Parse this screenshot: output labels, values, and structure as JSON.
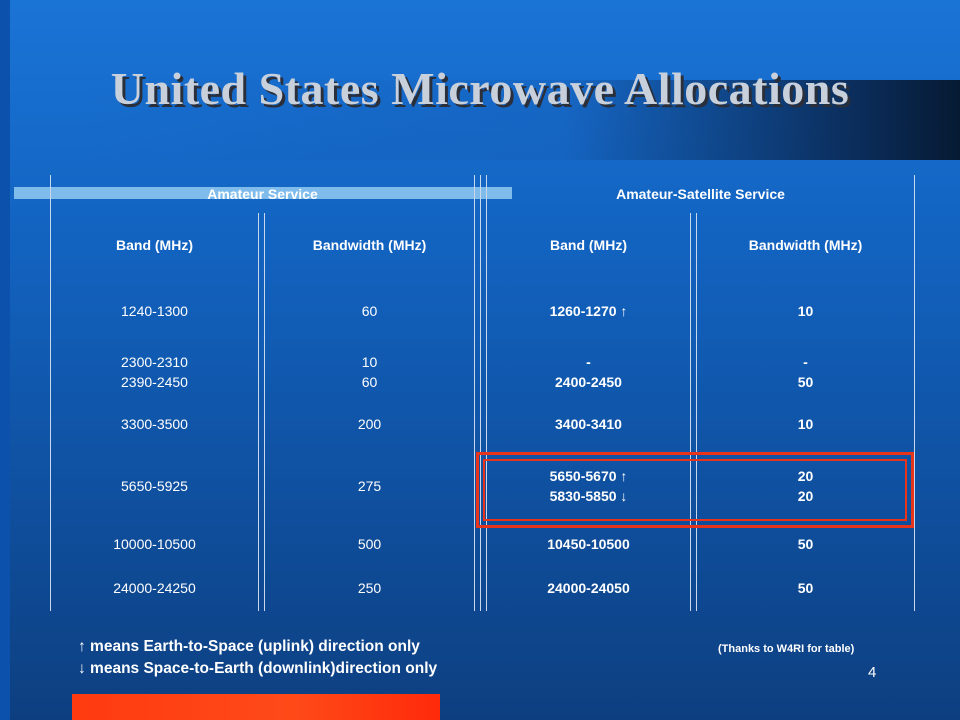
{
  "slide": {
    "title": "United States Microwave Allocations",
    "page_number": "4"
  },
  "table": {
    "group_headers": [
      "Amateur Service",
      "Amateur-Satellite Service"
    ],
    "column_headers": [
      "Band (MHz)",
      "Bandwidth (MHz)",
      "Band (MHz)",
      "Bandwidth (MHz)"
    ],
    "rows": [
      [
        "1240-1300",
        "60",
        "1260-1270 ↑",
        "10"
      ],
      [
        "2300-2310\n2390-2450",
        "10\n60",
        "-\n2400-2450",
        "-\n50"
      ],
      [
        "3300-3500",
        "200",
        "3400-3410",
        "10"
      ],
      [
        "5650-5925",
        "275",
        "5650-5670 ↑\n5830-5850 ↓",
        "20\n20"
      ],
      [
        "10000-10500",
        "500",
        "10450-10500",
        "50"
      ],
      [
        "24000-24250",
        "250",
        "24000-24050",
        "50"
      ]
    ]
  },
  "legend": {
    "uplink": "↑ means Earth-to-Space (uplink) direction only",
    "downlink": "↓ means Space-to-Earth (downlink)direction only"
  },
  "credit": "(Thanks to W4RI for table)",
  "colors": {
    "highlight_box": "#e8341a",
    "accent_bar": "#7fbcec",
    "bottom_bar": "#ff3a10"
  }
}
